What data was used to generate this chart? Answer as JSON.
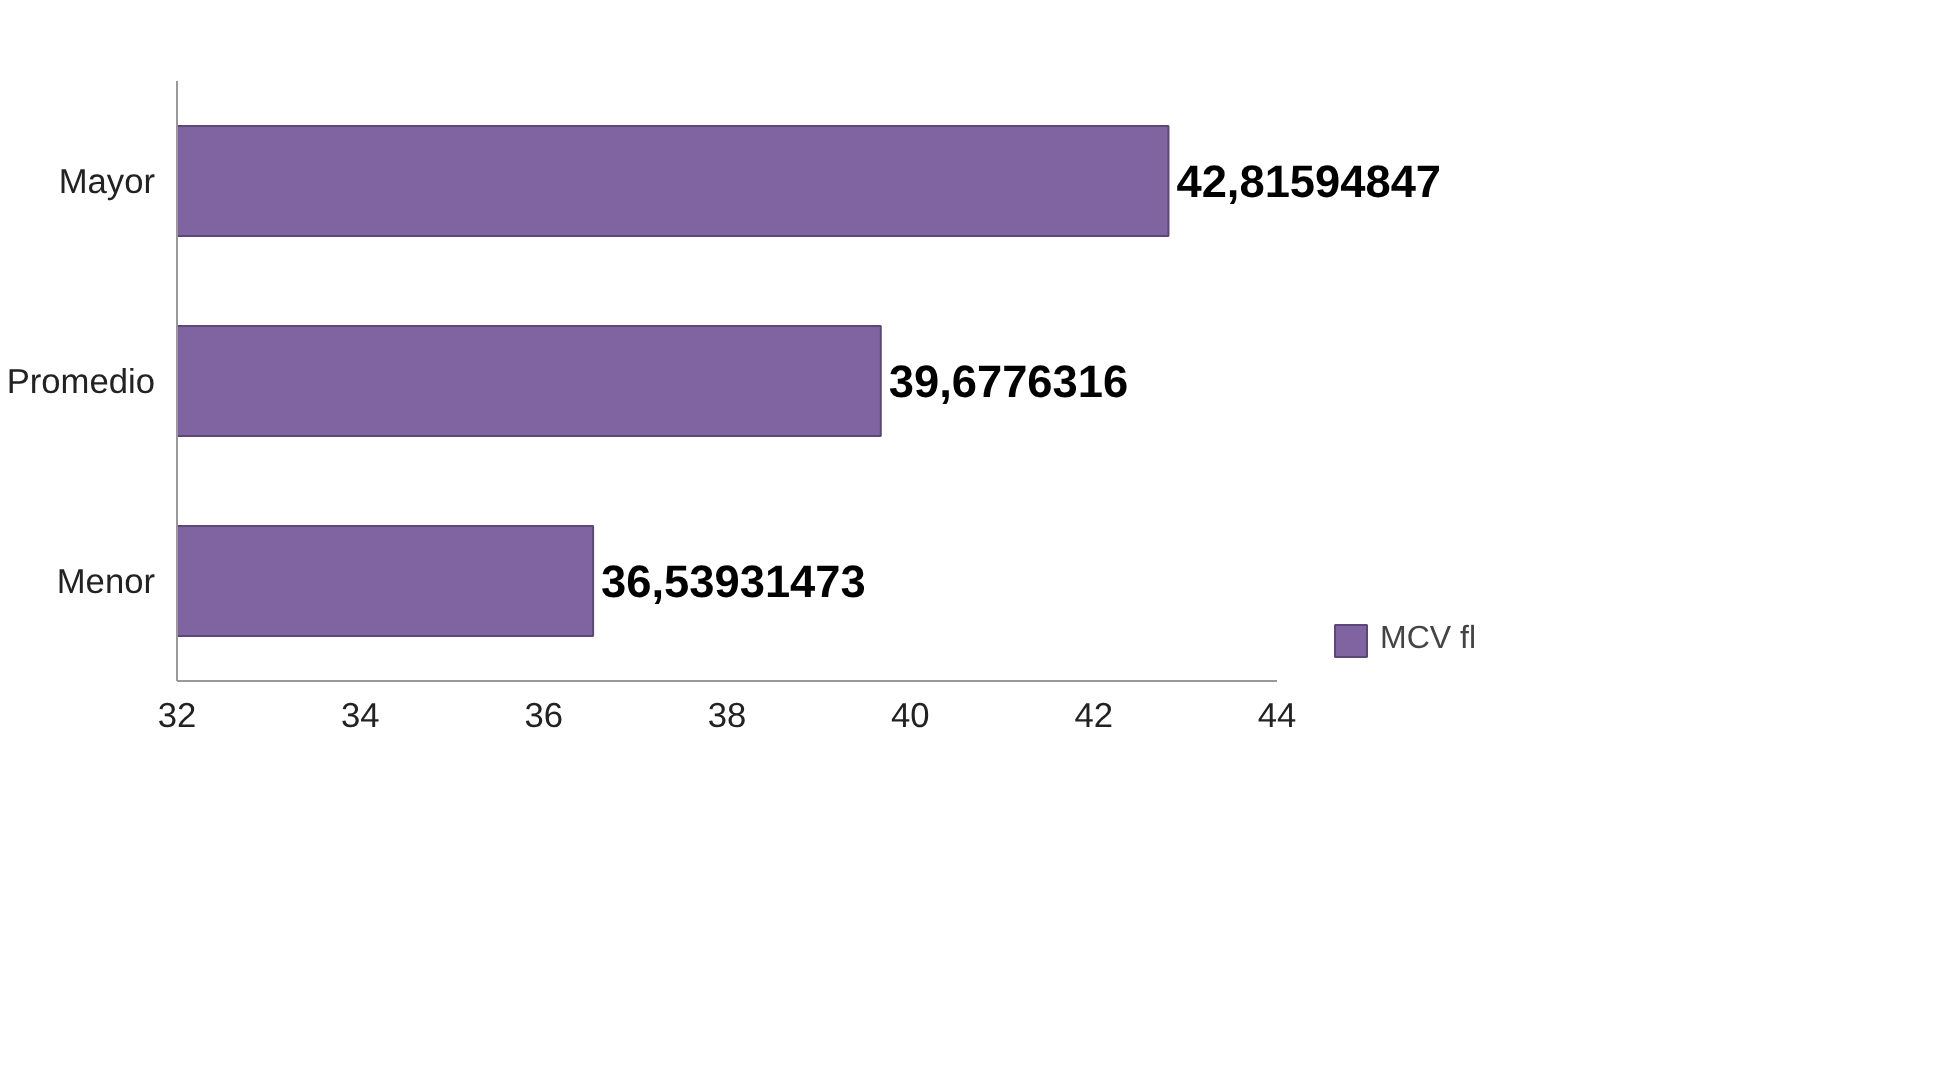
{
  "chart_data": {
    "type": "bar",
    "orientation": "horizontal",
    "categories": [
      "Mayor",
      "Promedio",
      "Menor"
    ],
    "series": [
      {
        "name": "MCV fl",
        "color": "#8064a2",
        "values": [
          42.81594847,
          39.6776316,
          36.53931473
        ]
      }
    ],
    "value_labels": [
      "42,81594847",
      "39,6776316",
      "36,53931473"
    ],
    "xlim": [
      32,
      44
    ],
    "xticks": [
      32,
      34,
      36,
      38,
      40,
      42,
      44
    ],
    "grid": false,
    "legend": "bottom right"
  }
}
